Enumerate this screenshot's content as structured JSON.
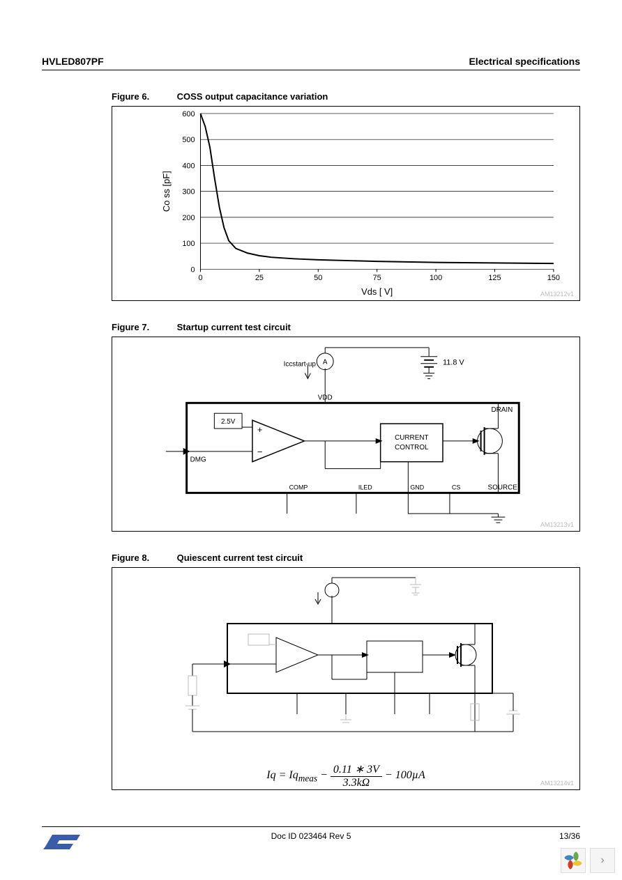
{
  "header": {
    "left": "HVLED807PF",
    "right": "Electrical specifications"
  },
  "figure6": {
    "num": "Figure 6.",
    "title": "COSS output capacitance variation",
    "ref": "AM13212v1",
    "chart": {
      "type": "line",
      "xlabel": "Vds [ V]",
      "ylabel": "Co ss   [pF]",
      "xlim": [
        0,
        150
      ],
      "ylim": [
        0,
        600
      ],
      "xticks": [
        0,
        25,
        50,
        75,
        100,
        125,
        150
      ],
      "yticks": [
        0,
        100,
        200,
        300,
        400,
        500,
        600
      ],
      "grid_color": "#000000",
      "background_color": "#ffffff",
      "line_color": "#000000",
      "line_width": 2,
      "data_x": [
        0,
        2,
        4,
        6,
        8,
        10,
        12,
        15,
        20,
        25,
        30,
        40,
        50,
        75,
        100,
        125,
        150
      ],
      "data_y": [
        600,
        550,
        470,
        350,
        240,
        160,
        110,
        80,
        62,
        52,
        46,
        40,
        36,
        30,
        26,
        24,
        22
      ]
    }
  },
  "figure7": {
    "num": "Figure 7.",
    "title": "Startup current test circuit",
    "ref": "AM13213v1",
    "labels": {
      "icc": "Iccstart-up",
      "voltage": "11.8 V",
      "vref": "2.5V",
      "vdd": "VDD",
      "drain": "DRAIN",
      "dmg": "DMG",
      "block": "CURRENT CONTROL",
      "comp": "COMP",
      "iled": "ILED",
      "gnd": "GND",
      "cs": "CS",
      "source": "SOURCE"
    }
  },
  "figure8": {
    "num": "Figure 8.",
    "title": "Quiescent current test circuit",
    "ref": "AM13214v1",
    "equation_html": "Iq = Iq<sub>meas</sub> − <span style='display:inline-block;vertical-align:middle;text-align:center;'><span style='display:block;border-bottom:1px solid #000;padding:0 4px;'>0.11 ∗ 3V</span><span style='display:block;padding:0 4px;'>3.3kΩ</span></span> − 100µA"
  },
  "footer": {
    "doc": "Doc ID 023464 Rev 5",
    "page": "13/36"
  },
  "colors": {
    "accent": "#3b5ca8",
    "petal1": "#6aa84f",
    "petal2": "#f1c232",
    "petal3": "#3d85c6",
    "petal4": "#cc4125"
  }
}
